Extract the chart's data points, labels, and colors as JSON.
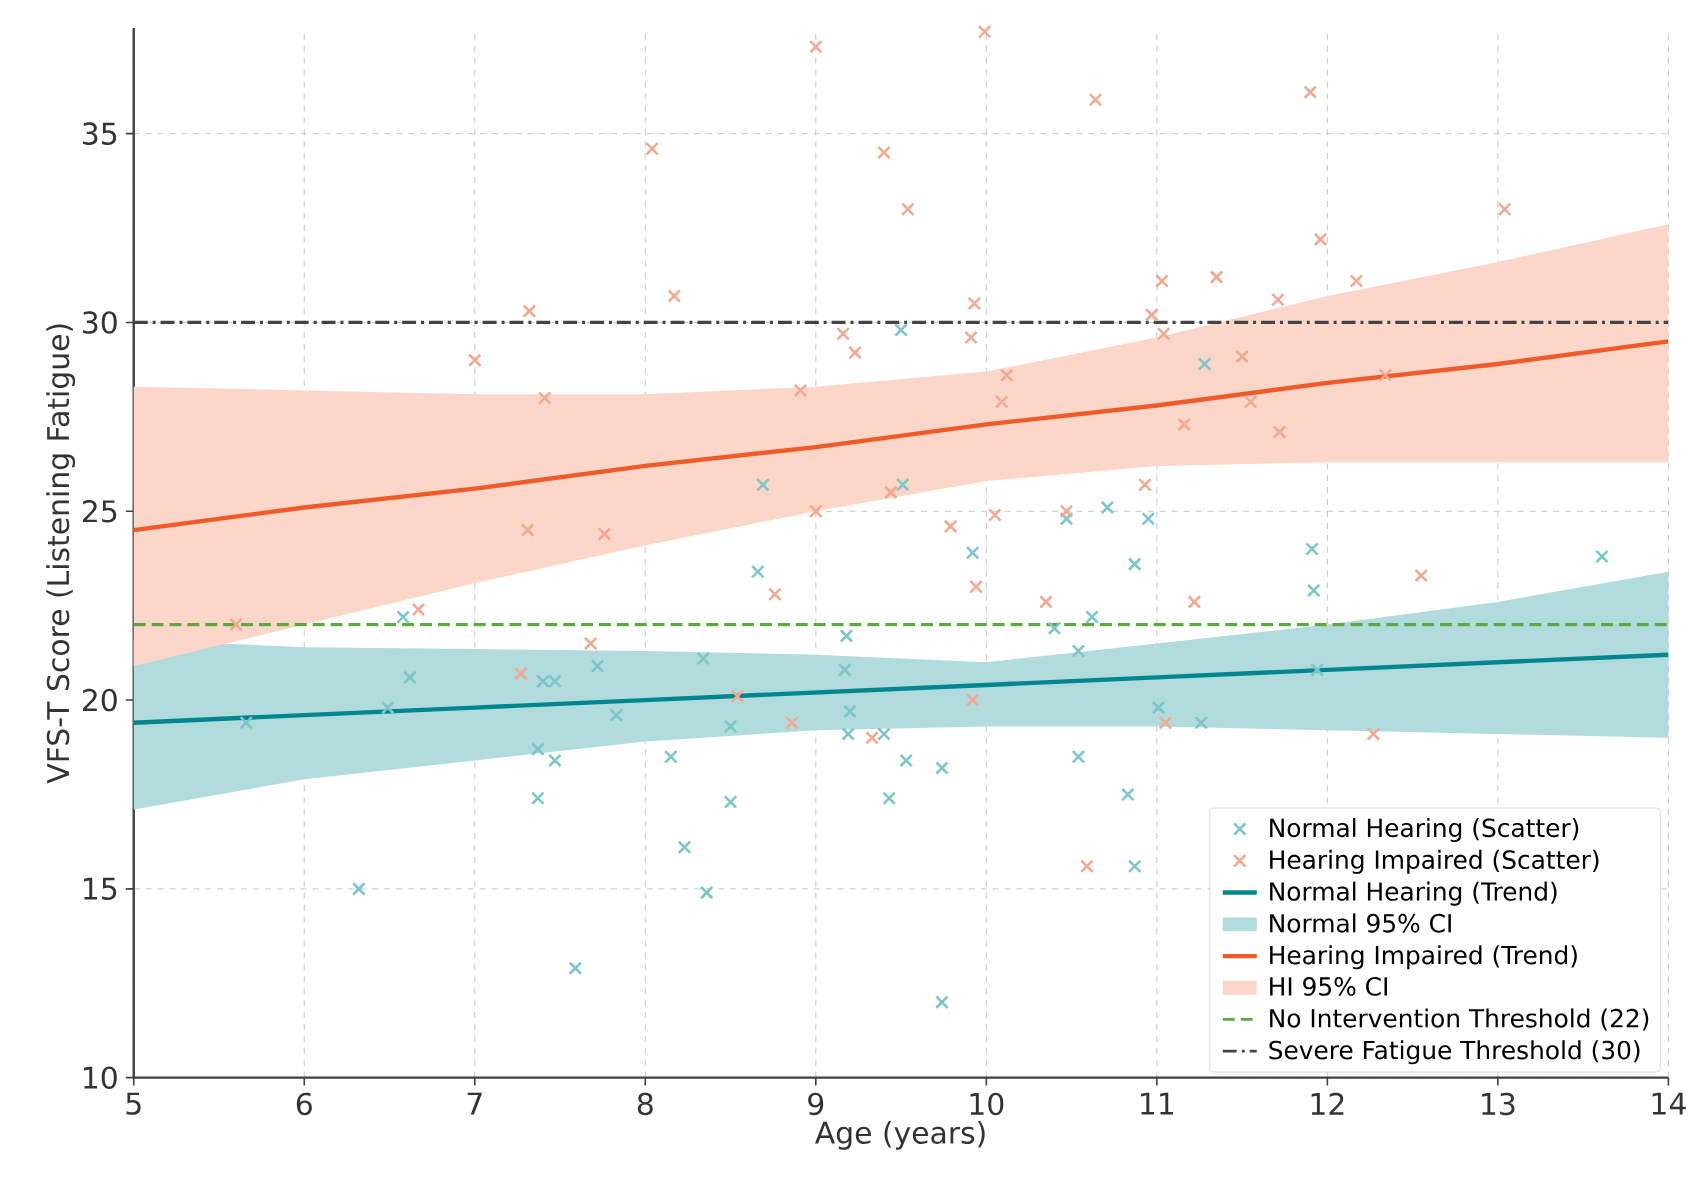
{
  "chart_data": {
    "type": "scatter",
    "xlabel": "Age (years)",
    "ylabel": "VFS-T Score (Listening Fatigue)",
    "xlim": [
      5,
      14
    ],
    "ylim": [
      10,
      37.8
    ],
    "xticks": [
      5,
      6,
      7,
      8,
      9,
      10,
      11,
      12,
      13,
      14
    ],
    "yticks": [
      10,
      15,
      20,
      25,
      30,
      35
    ],
    "grid": true,
    "legend": "bottom right",
    "marker": "cross",
    "annotations": [
      "Normal 95% CI",
      "HI 95% CI"
    ],
    "series": [
      {
        "name": "Normal Hearing (Scatter)",
        "color": "#7cc6c9",
        "x": [
          5.66,
          6.32,
          6.49,
          6.58,
          6.62,
          7.37,
          7.37,
          7.4,
          7.47,
          7.47,
          7.59,
          7.72,
          7.83,
          8.15,
          8.23,
          8.34,
          8.36,
          8.5,
          8.5,
          8.66,
          8.69,
          9.17,
          9.18,
          9.2,
          9.19,
          9.4,
          9.43,
          9.53,
          9.5,
          9.51,
          9.92,
          10.47,
          10.71,
          10.95,
          10.87,
          11.28,
          11.91,
          13.61,
          11.92,
          10.4,
          10.62,
          10.54,
          9.74,
          9.74,
          10.54,
          11.01,
          11.26,
          10.83,
          10.87,
          11.94
        ],
        "values": [
          19.4,
          15.0,
          19.8,
          22.2,
          20.6,
          18.7,
          17.4,
          20.5,
          20.5,
          18.4,
          12.9,
          20.9,
          19.6,
          18.5,
          16.1,
          21.1,
          14.9,
          19.3,
          17.3,
          23.4,
          25.7,
          20.8,
          21.7,
          19.7,
          19.1,
          19.1,
          17.4,
          18.4,
          29.8,
          25.7,
          23.9,
          24.8,
          25.1,
          24.8,
          23.6,
          28.9,
          24.0,
          23.8,
          22.9,
          21.9,
          22.2,
          21.3,
          18.2,
          12.0,
          18.5,
          19.8,
          19.4,
          17.5,
          15.6,
          20.8
        ]
      },
      {
        "name": "Hearing Impaired (Scatter)",
        "color": "#f3a890",
        "x": [
          9.0,
          8.04,
          9.4,
          9.54,
          8.17,
          7.32,
          7.0,
          7.41,
          8.91,
          9.16,
          9.23,
          7.31,
          7.76,
          9.0,
          9.44,
          9.99,
          10.64,
          11.9,
          13.04,
          11.96,
          11.03,
          11.35,
          11.71,
          12.17,
          9.93,
          9.91,
          10.97,
          11.04,
          10.12,
          10.09,
          11.5,
          11.55,
          11.72,
          11.16,
          12.34,
          10.93,
          9.79,
          10.05,
          10.47,
          12.55,
          9.94,
          10.35,
          11.22,
          11.05,
          12.27,
          10.59,
          9.92,
          5.6,
          6.67,
          7.68,
          7.27,
          8.76,
          8.54,
          8.86,
          9.33
        ],
        "values": [
          37.3,
          34.6,
          34.5,
          33.0,
          30.7,
          30.3,
          29.0,
          28.0,
          28.2,
          29.7,
          29.2,
          24.5,
          24.4,
          25.0,
          25.5,
          37.7,
          35.9,
          36.1,
          33.0,
          32.2,
          31.1,
          31.2,
          30.6,
          31.1,
          30.5,
          29.6,
          30.2,
          29.7,
          28.6,
          27.9,
          29.1,
          27.9,
          27.1,
          27.3,
          28.6,
          25.7,
          24.6,
          24.9,
          25.0,
          23.3,
          23.0,
          22.6,
          22.6,
          19.4,
          19.1,
          15.6,
          20.0,
          22.0,
          22.4,
          21.5,
          20.7,
          22.8,
          20.1,
          19.4,
          19.0
        ]
      },
      {
        "type": "line",
        "name": "Normal Hearing (Trend)",
        "color": "#00868f",
        "marker": "none",
        "x": [
          5,
          6,
          7,
          8,
          9,
          10,
          11,
          12,
          13,
          14
        ],
        "values": [
          19.4,
          19.6,
          19.8,
          20.0,
          20.2,
          20.4,
          20.6,
          20.8,
          21.0,
          21.2
        ],
        "lower": [
          17.1,
          17.9,
          18.4,
          18.9,
          19.2,
          19.3,
          19.3,
          19.2,
          19.1,
          19.0
        ],
        "upper": [
          21.6,
          21.4,
          21.35,
          21.3,
          21.2,
          21.0,
          21.5,
          22.0,
          22.6,
          23.4
        ]
      },
      {
        "type": "line",
        "name": "Hearing Impaired (Trend)",
        "color": "#f05a28",
        "marker": "none",
        "x": [
          5,
          6,
          7,
          8,
          9,
          10,
          11,
          12,
          13,
          14
        ],
        "values": [
          24.5,
          25.1,
          25.6,
          26.2,
          26.7,
          27.3,
          27.8,
          28.4,
          28.9,
          29.5
        ],
        "lower": [
          20.9,
          22.0,
          23.1,
          24.1,
          25.0,
          25.8,
          26.2,
          26.3,
          26.3,
          26.3
        ],
        "upper": [
          28.3,
          28.2,
          28.1,
          28.1,
          28.3,
          28.7,
          29.6,
          30.7,
          31.6,
          32.6
        ]
      }
    ],
    "ref_lines": [
      {
        "axis": "y",
        "value": 22,
        "label": "No Intervention Threshold (22)",
        "color": "#5aab3c",
        "line_style": "dashed"
      },
      {
        "axis": "y",
        "value": 30,
        "label": "Severe Fatigue Threshold (30)",
        "color": "#444444",
        "line_style": "dashdot"
      }
    ]
  }
}
